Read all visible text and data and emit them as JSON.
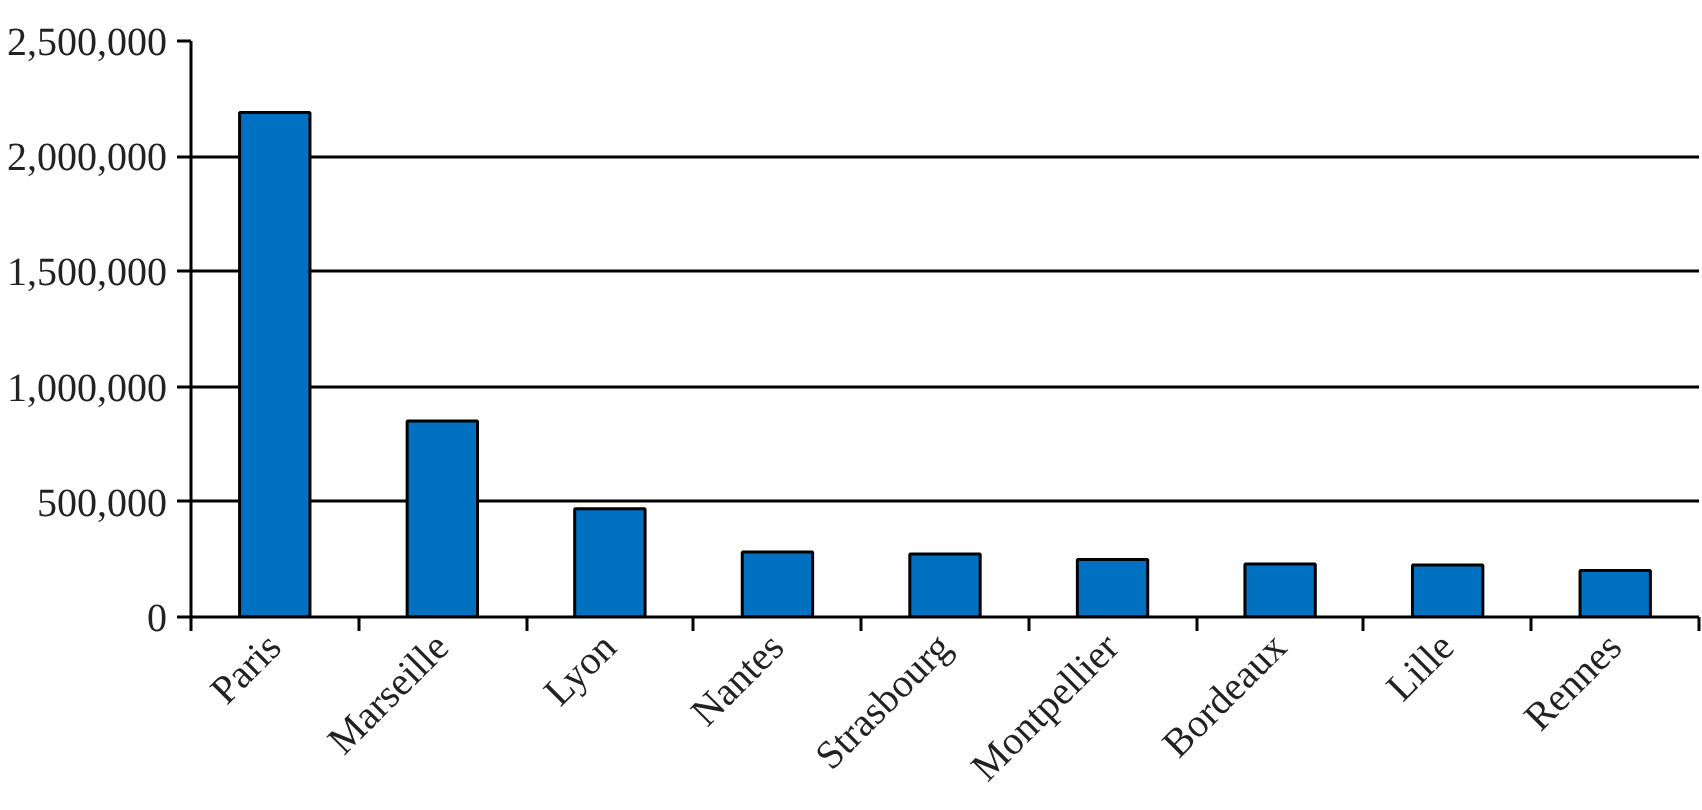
{
  "chart_data": {
    "type": "bar",
    "categories": [
      "Paris",
      "Marseille",
      "Lyon",
      "Nantes",
      "Strasbourg",
      "Montpellier",
      "Bordeaux",
      "Lille",
      "Rennes"
    ],
    "values": [
      2190000,
      851000,
      470000,
      282000,
      273000,
      250000,
      230000,
      226000,
      202000
    ],
    "color": "#0070c0",
    "ylim": [
      0,
      2500000
    ],
    "yticks": [
      {
        "value": 0,
        "label": "0"
      },
      {
        "value": 500000,
        "label": "500,000"
      },
      {
        "value": 1000000,
        "label": "1,000,000"
      },
      {
        "value": 1500000,
        "label": "1,500,000"
      },
      {
        "value": 2000000,
        "label": "2,000,000"
      },
      {
        "value": 2500000,
        "label": "2,500,000"
      }
    ],
    "grid": "y"
  }
}
